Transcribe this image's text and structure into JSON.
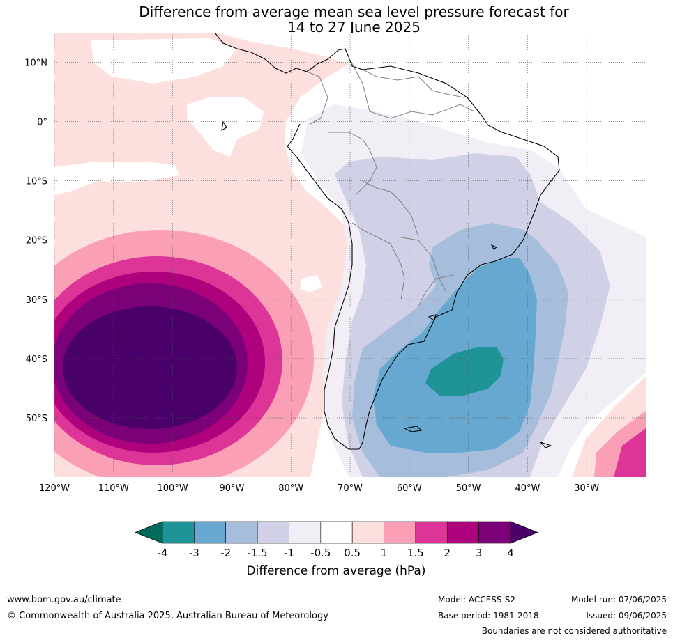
{
  "title_line1": "Difference from average mean sea level pressure forecast for",
  "title_line2": "14 to 27 June 2025",
  "map": {
    "lon_labels": [
      "120°W",
      "110°W",
      "100°W",
      "90°W",
      "80°W",
      "70°W",
      "60°W",
      "50°W",
      "40°W",
      "30°W"
    ],
    "lat_labels": [
      "10°N",
      "0°",
      "10°S",
      "20°S",
      "30°S",
      "40°S",
      "50°S"
    ],
    "lon_range": [
      -120,
      -20
    ],
    "lat_range": [
      -60,
      15
    ],
    "gridlines": true
  },
  "colorbar": {
    "ticks": [
      "-4",
      "-3",
      "-2",
      "-1.5",
      "-1",
      "-0.5",
      "0.5",
      "1",
      "1.5",
      "2",
      "3",
      "4"
    ],
    "colors": [
      "#1e9499",
      "#66a8cf",
      "#a6bddb",
      "#d0d1e6",
      "#f1eef6",
      "#ffffff",
      "#fde0dd",
      "#fa9fb5",
      "#dd3497",
      "#ae017e",
      "#7a0177"
    ],
    "under_color": "#016c59",
    "over_color": "#49006a",
    "label": "Difference from average (hPa)"
  },
  "footer": {
    "url": "www.bom.gov.au/climate",
    "copyright": "© Commonwealth of Australia 2025, Australian Bureau of Meteorology",
    "model": "Model: ACCESS-S2",
    "base_period": "Base period: 1981-2018",
    "model_run": "Model run: 07/06/2025",
    "issued": "Issued: 09/06/2025",
    "disclaimer": "Boundaries are not considered authoritative"
  }
}
